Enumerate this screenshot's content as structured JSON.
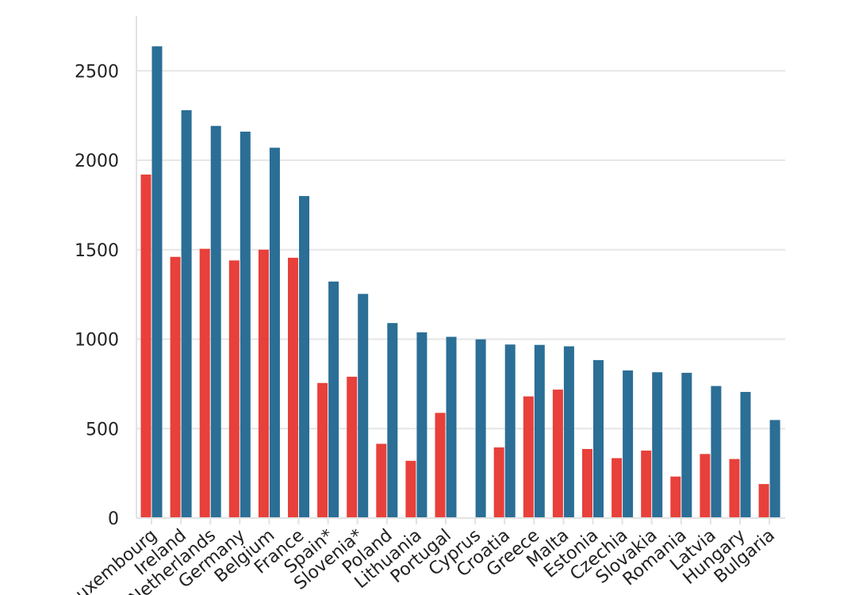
{
  "chart_data": {
    "type": "bar",
    "title": "",
    "xlabel": "",
    "ylabel": "",
    "ylim": [
      0,
      2800
    ],
    "yticks": [
      0,
      500,
      1000,
      1500,
      2000,
      2500
    ],
    "grid": true,
    "legend": "none",
    "categories": [
      "Luxembourg",
      "Ireland",
      "Netherlands",
      "Germany",
      "Belgium",
      "France",
      "Spain*",
      "Slovenia*",
      "Poland",
      "Lithuania",
      "Portugal",
      "Cyprus",
      "Croatia",
      "Greece",
      "Malta",
      "Estonia",
      "Czechia",
      "Slovakia",
      "Romania",
      "Latvia",
      "Hungary",
      "Bulgaria"
    ],
    "series": [
      {
        "color": "#e8403a",
        "values": [
          1920,
          1460,
          1505,
          1440,
          1500,
          1455,
          755,
          790,
          415,
          320,
          588,
          null,
          395,
          680,
          718,
          386,
          335,
          377,
          232,
          358,
          330,
          190
        ]
      },
      {
        "color": "#2b6e96",
        "values": [
          2637,
          2280,
          2192,
          2160,
          2070,
          1800,
          1322,
          1253,
          1090,
          1038,
          1013,
          999,
          970,
          968,
          960,
          883,
          825,
          815,
          812,
          738,
          705,
          548
        ]
      }
    ]
  }
}
